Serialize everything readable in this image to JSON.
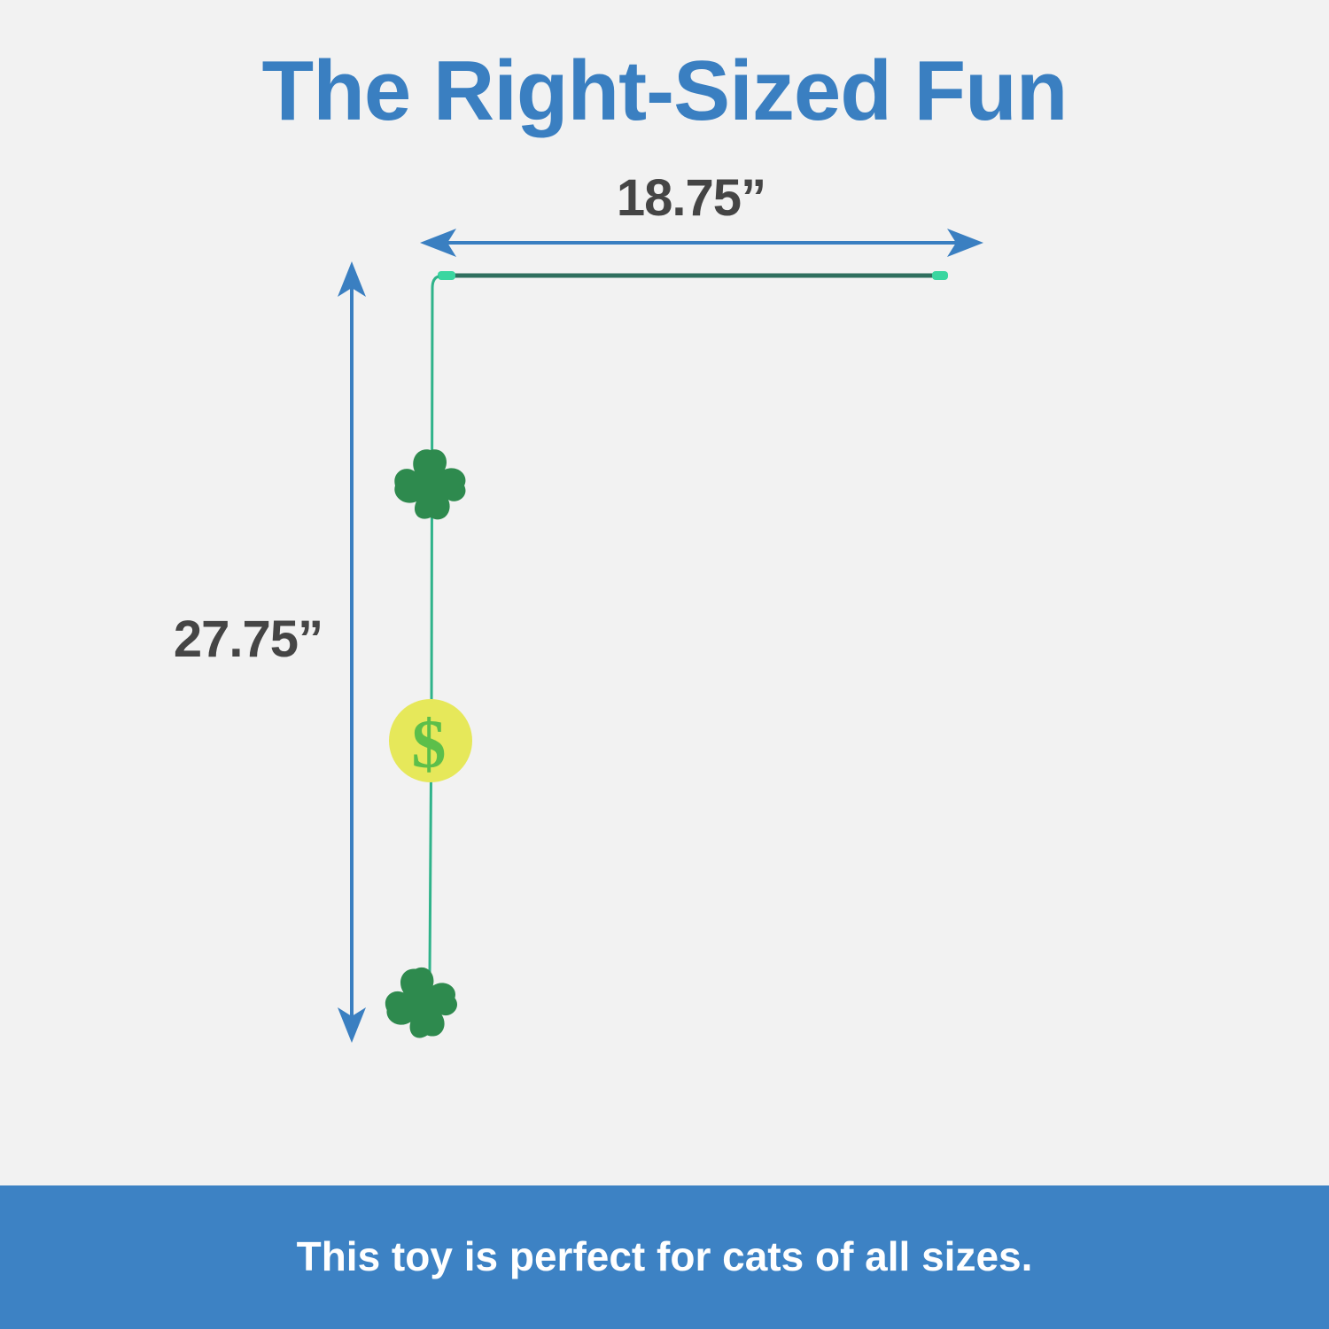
{
  "title": "The Right-Sized Fun",
  "dimensions": {
    "width": "18.75”",
    "height": "27.75”"
  },
  "toy": {
    "ball_symbol": "$"
  },
  "footer": {
    "text": "This toy is perfect for cats of all sizes."
  },
  "colors": {
    "accent": "#3a7fc1",
    "footer_bg": "#3d82c4",
    "background": "#f2f2f2",
    "shamrock": "#2e8a4e",
    "string": "#2fb38a",
    "ball": "#e6e85a"
  }
}
